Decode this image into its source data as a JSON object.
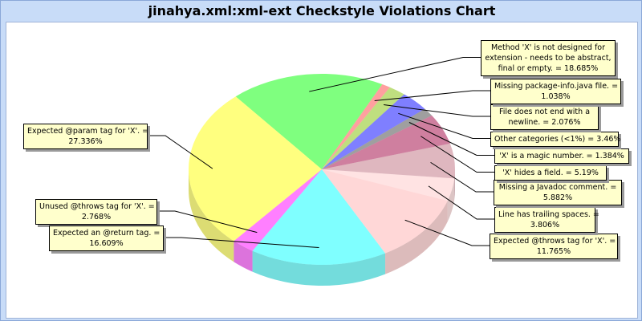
{
  "chart_data": {
    "type": "pie",
    "title": "jinahya.xml:xml-ext Checkstyle Violations Chart",
    "slices": [
      {
        "label": "Method 'X' is not designed for extension - needs to be abstract, final or empty. = 18.685%",
        "value": 18.685,
        "color": "#00ff00"
      },
      {
        "label": "Expected @param tag for 'X'. = 27.336%",
        "value": 27.336,
        "color": "#ffff00"
      },
      {
        "label": "Unused @throws tag for 'X'. = 2.768%",
        "value": 2.768,
        "color": "#ff00ff"
      },
      {
        "label": "Expected an @return tag. = 16.609%",
        "value": 16.609,
        "color": "#00ffff"
      },
      {
        "label": "Expected @throws tag for 'X'. = 11.765%",
        "value": 11.765,
        "color": "#ffafaf"
      },
      {
        "label": "Line has trailing spaces. = 3.806%",
        "value": 3.806,
        "color": "#ffc8c8"
      },
      {
        "label": "Missing a Javadoc comment. = 5.882%",
        "value": 5.882,
        "color": "#c07080"
      },
      {
        "label": "'X' hides a field. = 5.19%",
        "value": 5.19,
        "color": "#a00040"
      },
      {
        "label": "'X' is a magic number. = 1.384%",
        "value": 1.384,
        "color": "#404040"
      },
      {
        "label": "Other categories (<1%) = 3.46%",
        "value": 3.46,
        "color": "#0000ff"
      },
      {
        "label": "File does not end with a newline. = 2.076%",
        "value": 2.076,
        "color": "#80c000"
      },
      {
        "label": "Missing package-info.java file. = 1.038%",
        "value": 1.038,
        "color": "#ff4040"
      }
    ]
  }
}
